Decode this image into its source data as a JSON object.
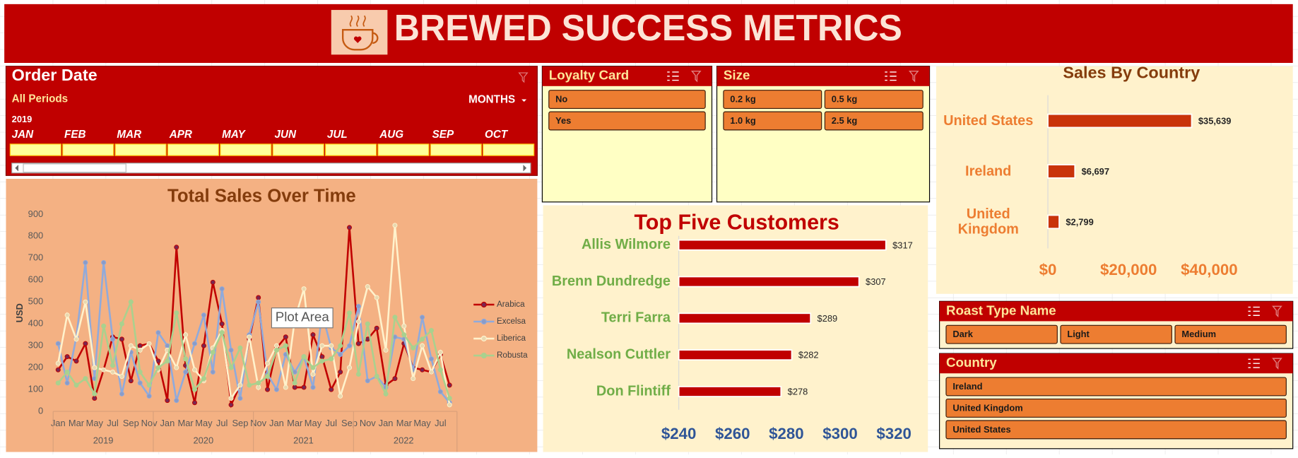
{
  "header": {
    "title": "BREWED SUCCESS METRICS"
  },
  "timeline": {
    "title": "Order Date",
    "period": "All Periods",
    "level": "MONTHS",
    "year": "2019",
    "months": [
      "JAN",
      "FEB",
      "MAR",
      "APR",
      "MAY",
      "JUN",
      "JUL",
      "AUG",
      "SEP",
      "OCT"
    ]
  },
  "slicers": [
    {
      "title": "Loyalty Card",
      "items": [
        "No",
        "Yes"
      ]
    },
    {
      "title": "Size",
      "items": [
        "0.2 kg",
        "0.5 kg",
        "1.0 kg",
        "2.5 kg"
      ]
    },
    {
      "title": "Roast Type Name",
      "items": [
        "Dark",
        "Light",
        "Medium"
      ]
    },
    {
      "title": "Country",
      "items": [
        "Ireland",
        "United Kingdom",
        "United States"
      ]
    }
  ],
  "tooltip": "Plot Area",
  "chart_data": [
    {
      "type": "line",
      "title": "Total Sales Over Time",
      "y_label": "USD",
      "categories": [
        "Jan",
        null,
        "Mar",
        null,
        "May",
        null,
        "Jul",
        null,
        "Sep",
        null,
        "Nov",
        null,
        "Jan",
        null,
        "Mar",
        null,
        "May",
        null,
        "Jul",
        null,
        "Sep",
        null,
        "Nov",
        null,
        "Jan",
        null,
        "Mar",
        null,
        "May",
        null,
        "Jul",
        null,
        "Sep",
        null,
        "Nov",
        null,
        "Jan",
        null,
        "Mar",
        null,
        "May",
        null,
        "Jul",
        null
      ],
      "year_groups": [
        "2019",
        "2020",
        "2021",
        "2022"
      ],
      "ylim": [
        0,
        900
      ],
      "yticks": [
        0,
        100,
        200,
        300,
        400,
        500,
        600,
        700,
        800,
        900
      ],
      "grid": false,
      "legend": "right",
      "series": [
        {
          "name": "Arabica",
          "color": "#c00000",
          "marker": "#7b2650",
          "values": [
            190,
            250,
            230,
            310,
            60,
            190,
            340,
            330,
            140,
            300,
            310,
            230,
            50,
            750,
            210,
            40,
            300,
            590,
            400,
            30,
            120,
            330,
            520,
            100,
            290,
            340,
            110,
            110,
            350,
            250,
            100,
            180,
            840,
            310,
            330,
            380,
            120,
            150,
            310,
            200,
            190,
            180,
            260,
            120
          ]
        },
        {
          "name": "Excelsa",
          "color": "#8faadc",
          "marker": "#8a9bc8",
          "values": [
            310,
            130,
            340,
            680,
            150,
            680,
            330,
            80,
            270,
            130,
            70,
            360,
            300,
            50,
            180,
            310,
            440,
            180,
            560,
            280,
            60,
            350,
            500,
            170,
            100,
            260,
            180,
            250,
            110,
            450,
            290,
            260,
            300,
            480,
            140,
            160,
            110,
            340,
            330,
            190,
            430,
            240,
            90,
            40
          ]
        },
        {
          "name": "Liberica",
          "color": "#fff2cc",
          "marker": "#e8d8b0",
          "values": [
            220,
            440,
            330,
            500,
            200,
            190,
            180,
            160,
            300,
            280,
            310,
            190,
            280,
            200,
            350,
            190,
            140,
            290,
            370,
            60,
            120,
            340,
            110,
            220,
            300,
            110,
            420,
            560,
            170,
            300,
            300,
            70,
            200,
            410,
            570,
            520,
            280,
            850,
            390,
            150,
            300,
            180,
            270,
            30
          ]
        },
        {
          "name": "Robusta",
          "color": "#a9d18e",
          "marker": "#a9d18e",
          "values": [
            130,
            180,
            120,
            150,
            80,
            390,
            210,
            400,
            500,
            180,
            120,
            200,
            230,
            450,
            240,
            100,
            150,
            270,
            360,
            200,
            290,
            120,
            130,
            160,
            280,
            300,
            130,
            250,
            200,
            230,
            240,
            300,
            450,
            170,
            400,
            160,
            80,
            430,
            350,
            290,
            330,
            370,
            190,
            60
          ]
        }
      ]
    },
    {
      "type": "bar",
      "orientation": "horizontal",
      "title": "Top Five Customers",
      "color": "#c00000",
      "categories": [
        "Allis Wilmore",
        "Brenn Dundredge",
        "Terri Farra",
        "Nealson Cuttler",
        "Don Flintiff"
      ],
      "values": [
        317,
        307,
        289,
        282,
        278
      ],
      "value_labels": [
        "$317",
        "$307",
        "$289",
        "$282",
        "$278"
      ],
      "xlim": [
        240,
        320
      ],
      "xticks": [
        {
          "value": 240,
          "label": "$240"
        },
        {
          "value": 260,
          "label": "$260"
        },
        {
          "value": 280,
          "label": "$280"
        },
        {
          "value": 300,
          "label": "$300"
        },
        {
          "value": 320,
          "label": "$320"
        }
      ]
    },
    {
      "type": "bar",
      "orientation": "horizontal",
      "title": "Sales By Country",
      "color": "#c9330a",
      "categories": [
        "United States",
        "Ireland",
        "United Kingdom"
      ],
      "values": [
        35639,
        6697,
        2799
      ],
      "value_labels": [
        "$35,639",
        "$6,697",
        "$2,799"
      ],
      "xlim": [
        0,
        40000
      ],
      "xticks": [
        {
          "value": 0,
          "label": "$0"
        },
        {
          "value": 20000,
          "label": "$20,000"
        },
        {
          "value": 40000,
          "label": "$40,000"
        }
      ]
    }
  ]
}
